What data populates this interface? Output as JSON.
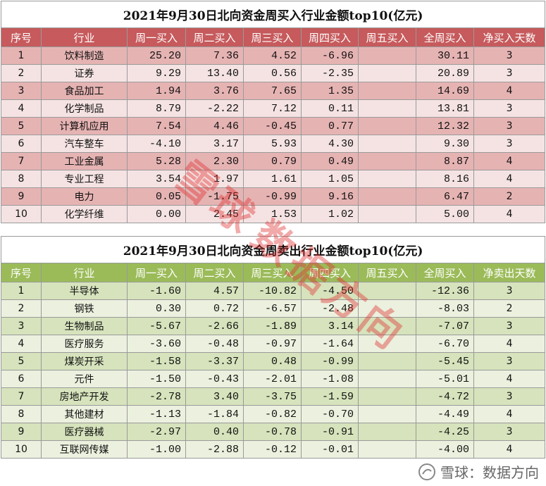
{
  "tables": [
    {
      "title": "2021年9月30日北向资金周买入行业金额top10(亿元)",
      "header": [
        "序号",
        "行业",
        "周一买入",
        "周二买入",
        "周三买入",
        "周四买入",
        "周五买入",
        "全周买入",
        "净买入天数"
      ],
      "rows": [
        [
          "1",
          "饮料制造",
          "25.20",
          "7.36",
          "4.52",
          "-6.96",
          null,
          "30.11",
          "3"
        ],
        [
          "2",
          "证券",
          "9.29",
          "13.40",
          "0.56",
          "-2.35",
          null,
          "20.89",
          "3"
        ],
        [
          "3",
          "食品加工",
          "1.94",
          "3.76",
          "7.65",
          "1.35",
          null,
          "14.69",
          "4"
        ],
        [
          "4",
          "化学制品",
          "8.79",
          "-2.22",
          "7.12",
          "0.11",
          null,
          "13.81",
          "3"
        ],
        [
          "5",
          "计算机应用",
          "7.54",
          "4.46",
          "-0.45",
          "0.77",
          null,
          "12.32",
          "3"
        ],
        [
          "6",
          "汽车整车",
          "-4.10",
          "3.17",
          "5.93",
          "4.30",
          null,
          "9.30",
          "3"
        ],
        [
          "7",
          "工业金属",
          "5.28",
          "2.30",
          "0.79",
          "0.49",
          null,
          "8.87",
          "4"
        ],
        [
          "8",
          "专业工程",
          "3.54",
          "1.97",
          "1.61",
          "1.05",
          null,
          "8.16",
          "4"
        ],
        [
          "9",
          "电力",
          "0.05",
          "-1.75",
          "-0.99",
          "9.16",
          null,
          "6.47",
          "2"
        ],
        [
          "10",
          "化学纤维",
          "0.00",
          "2.45",
          "1.53",
          "1.02",
          null,
          "5.00",
          "4"
        ]
      ]
    },
    {
      "title": "2021年9月30日北向资金周卖出行业金额top10(亿元)",
      "header": [
        "序号",
        "行业",
        "周一买入",
        "周二买入",
        "周三买入",
        "周四买入",
        "周五买入",
        "全周买入",
        "净卖出天数"
      ],
      "rows": [
        [
          "1",
          "半导体",
          "-1.60",
          "4.57",
          "-10.82",
          "-4.50",
          null,
          "-12.36",
          "3"
        ],
        [
          "2",
          "钢铁",
          "0.30",
          "0.72",
          "-6.57",
          "-2.48",
          null,
          "-8.03",
          "2"
        ],
        [
          "3",
          "生物制品",
          "-5.67",
          "-2.66",
          "-1.89",
          "3.14",
          null,
          "-7.07",
          "3"
        ],
        [
          "4",
          "医疗服务",
          "-3.60",
          "-0.48",
          "-0.97",
          "-1.64",
          null,
          "-6.70",
          "4"
        ],
        [
          "5",
          "煤炭开采",
          "-1.58",
          "-3.37",
          "0.48",
          "-0.99",
          null,
          "-5.45",
          "3"
        ],
        [
          "6",
          "元件",
          "-1.50",
          "-0.43",
          "-2.01",
          "-1.08",
          null,
          "-5.01",
          "4"
        ],
        [
          "7",
          "房地产开发",
          "-2.78",
          "3.40",
          "-3.75",
          "-1.59",
          null,
          "-4.72",
          "3"
        ],
        [
          "8",
          "其他建材",
          "-1.13",
          "-1.84",
          "-0.82",
          "-0.70",
          null,
          "-4.49",
          "4"
        ],
        [
          "9",
          "医疗器械",
          "-2.97",
          "0.40",
          "-0.78",
          "-0.91",
          null,
          "-4.25",
          "3"
        ],
        [
          "10",
          "互联网传媒",
          "-1.00",
          "-2.88",
          "-0.12",
          "-0.01",
          null,
          "-4.00",
          "4"
        ]
      ]
    }
  ],
  "watermark": [
    "雪球",
    "数据方向"
  ],
  "footer": "雪球：数据方向"
}
